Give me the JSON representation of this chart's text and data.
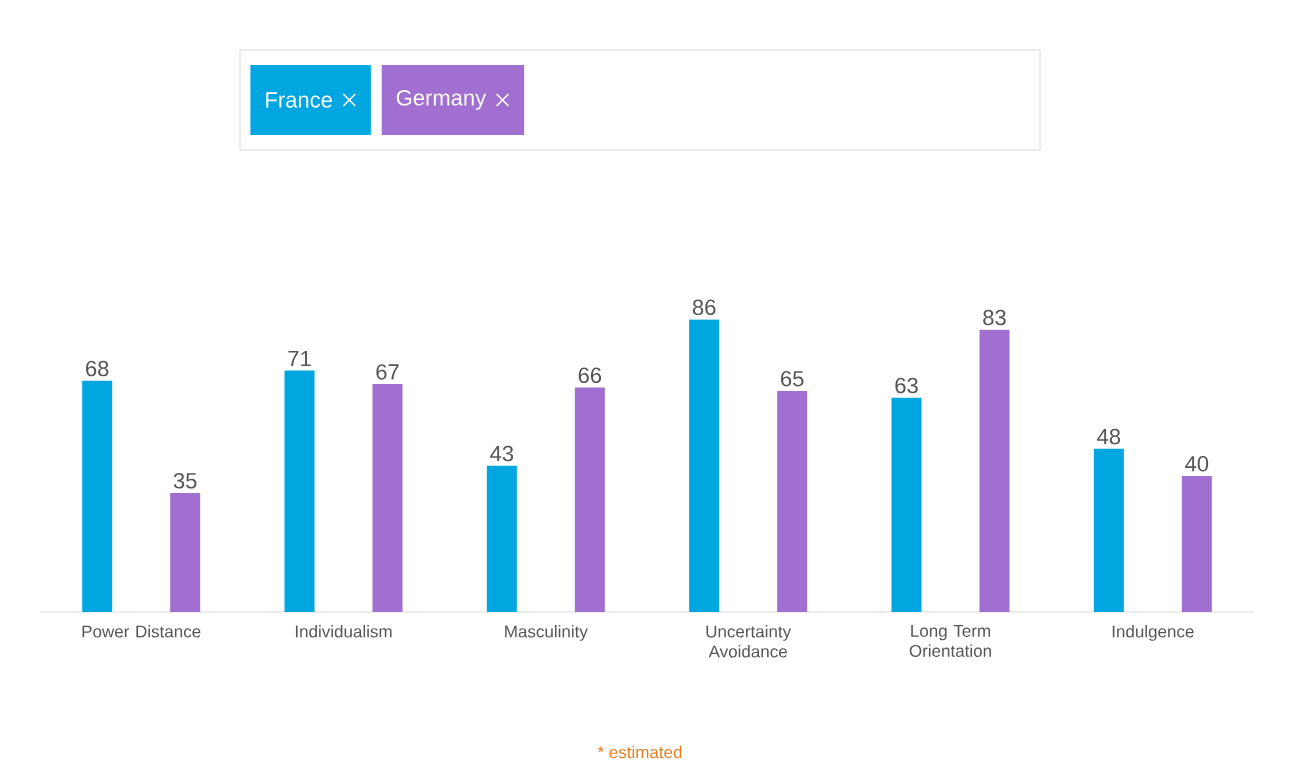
{
  "chart_data": {
    "type": "bar",
    "categories": [
      "Power Distance",
      "Individualism",
      "Masculinity",
      "Uncertainty Avoidance",
      "Long Term Orientation",
      "Indulgence"
    ],
    "series": [
      {
        "name": "France",
        "color": "#00a6df",
        "values": [
          68,
          71,
          43,
          86,
          63,
          48
        ]
      },
      {
        "name": "Germany",
        "color": "#a06fcf",
        "values": [
          35,
          67,
          66,
          65,
          83,
          40
        ]
      }
    ],
    "data_labels": true,
    "legend": "top",
    "annotations": [
      "* estimated"
    ]
  }
}
